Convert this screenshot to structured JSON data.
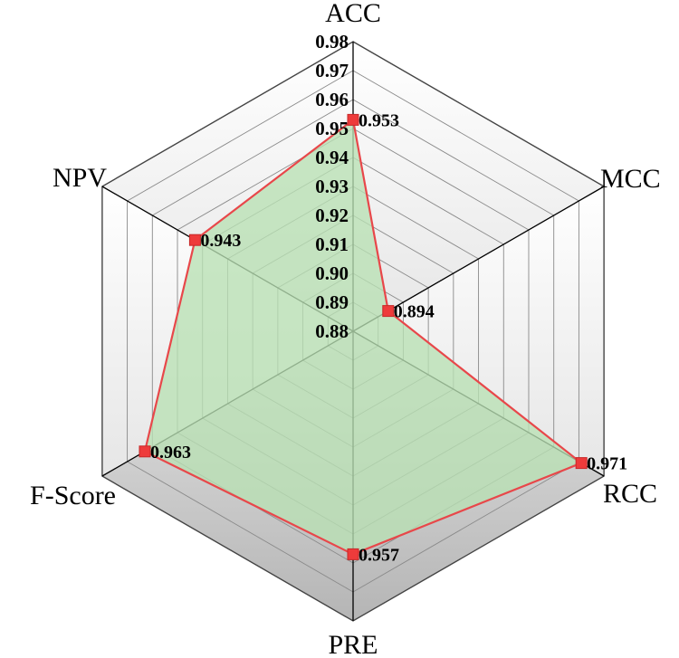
{
  "chart_data": {
    "type": "radar",
    "axes": [
      "ACC",
      "MCC",
      "RCC",
      "PRE",
      "F-Score",
      "NPV"
    ],
    "values": [
      0.953,
      0.894,
      0.971,
      0.957,
      0.963,
      0.943
    ],
    "data_labels": [
      "0.953",
      "0.894",
      "0.971",
      "0.957",
      "0.963",
      "0.943"
    ],
    "ticks": [
      "0.88",
      "0.89",
      "0.90",
      "0.91",
      "0.92",
      "0.93",
      "0.94",
      "0.95",
      "0.96",
      "0.97",
      "0.98"
    ],
    "range": [
      0.88,
      0.98
    ],
    "grid": true,
    "colors": {
      "series_line": "#e8474a",
      "series_fill": "#b9e0b4",
      "marker": "#ee3b3b",
      "grid": "#8a8a8a",
      "axis": "#000000",
      "panel_light": "#f4f4f4",
      "panel_dark": "#c9c9c9"
    }
  }
}
